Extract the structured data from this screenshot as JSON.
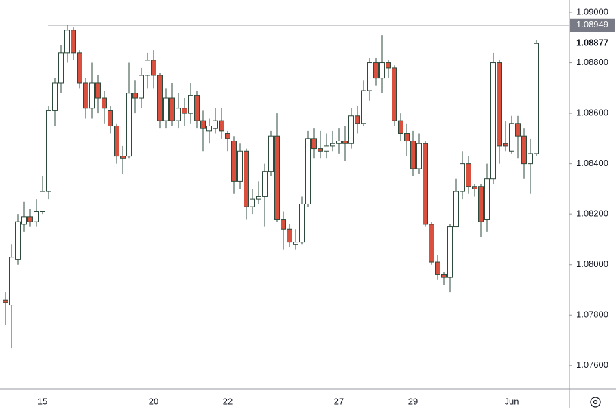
{
  "chart_data": {
    "type": "candlestick",
    "categories": [
      null,
      null,
      null,
      null,
      null,
      null,
      "15",
      null,
      null,
      null,
      null,
      null,
      null,
      null,
      null,
      null,
      null,
      null,
      null,
      null,
      null,
      null,
      null,
      null,
      "20",
      null,
      null,
      null,
      null,
      null,
      null,
      null,
      null,
      null,
      null,
      null,
      "22",
      null,
      null,
      null,
      null,
      null,
      null,
      null,
      null,
      null,
      null,
      null,
      null,
      null,
      null,
      null,
      null,
      null,
      "27",
      null,
      null,
      null,
      null,
      null,
      null,
      null,
      null,
      null,
      null,
      null,
      "29",
      null,
      null,
      null,
      null,
      null,
      null,
      null,
      null,
      null,
      null,
      null,
      null,
      null,
      null,
      null,
      "Jun",
      null,
      null,
      null,
      null
    ],
    "open": [
      1.0786,
      1.0784,
      1.0802,
      1.0816,
      1.0819,
      1.0817,
      1.0821,
      1.0829,
      1.0861,
      1.0872,
      1.0884,
      1.0893,
      1.0884,
      1.0872,
      1.0862,
      1.0872,
      1.0866,
      1.0861,
      1.0855,
      1.0843,
      1.0843,
      1.0868,
      1.0866,
      1.0875,
      1.0881,
      1.0875,
      1.0857,
      1.0866,
      1.0857,
      1.0862,
      1.086,
      1.0867,
      1.0857,
      1.0853,
      1.0854,
      1.0857,
      1.0852,
      1.0849,
      1.0833,
      1.0845,
      1.0823,
      1.0826,
      1.0827,
      1.0837,
      1.0851,
      1.0818,
      1.0814,
      1.0808,
      1.0809,
      1.0824,
      1.085,
      1.0846,
      1.0845,
      1.0847,
      1.0848,
      1.0849,
      1.0848,
      1.0859,
      1.0856,
      1.0869,
      1.088,
      1.0874,
      1.088,
      1.0878,
      1.0857,
      1.0852,
      1.0849,
      1.0838,
      1.0848,
      1.0816,
      1.0801,
      1.0796,
      1.0795,
      1.0815,
      1.0829,
      1.084,
      1.0831,
      1.0831,
      1.0818,
      1.0834,
      1.088,
      1.0848,
      1.0845,
      1.0856,
      1.0851,
      1.084,
      1.0844
    ],
    "high": [
      1.0789,
      1.0808,
      1.082,
      1.0825,
      1.0822,
      1.0826,
      1.0835,
      1.0863,
      1.0874,
      1.0887,
      1.0895,
      1.0894,
      1.0885,
      1.0874,
      1.088,
      1.0875,
      1.0869,
      1.0863,
      1.0856,
      1.0847,
      1.088,
      1.0873,
      1.0878,
      1.0884,
      1.0885,
      1.0876,
      1.087,
      1.0872,
      1.0868,
      1.0866,
      1.0872,
      1.0869,
      1.0861,
      1.0858,
      1.0862,
      1.0862,
      1.0853,
      1.0851,
      1.0848,
      1.0846,
      1.083,
      1.0833,
      1.084,
      1.0853,
      1.086,
      1.0821,
      1.0816,
      1.0814,
      1.0827,
      1.0853,
      1.0854,
      1.0853,
      1.0852,
      1.0853,
      1.0854,
      1.0855,
      1.0862,
      1.0863,
      1.0873,
      1.0882,
      1.0882,
      1.0891,
      1.0881,
      1.0879,
      1.086,
      1.0856,
      1.0853,
      1.0852,
      1.0849,
      1.0817,
      1.0804,
      1.0797,
      1.0816,
      1.0834,
      1.0845,
      1.0843,
      1.0832,
      1.0832,
      1.084,
      1.0884,
      1.0881,
      1.0857,
      1.0859,
      1.0859,
      1.0854,
      1.085,
      1.0889
    ],
    "low": [
      1.0776,
      1.0767,
      1.08,
      1.0813,
      1.0815,
      1.0815,
      1.082,
      1.0826,
      1.0855,
      1.0868,
      1.088,
      1.0881,
      1.087,
      1.0858,
      1.0858,
      1.086,
      1.0856,
      1.0852,
      1.084,
      1.0836,
      1.0842,
      1.086,
      1.0862,
      1.087,
      1.087,
      1.0854,
      1.0854,
      1.0855,
      1.0854,
      1.0855,
      1.0856,
      1.0854,
      1.0845,
      1.0848,
      1.0852,
      1.085,
      1.0845,
      1.0828,
      1.083,
      1.0818,
      1.082,
      1.0824,
      1.0815,
      1.0835,
      1.0817,
      1.0806,
      1.0807,
      1.0806,
      1.0808,
      1.0823,
      1.0842,
      1.0842,
      1.0842,
      1.0845,
      1.0844,
      1.0841,
      1.0846,
      1.0852,
      1.0855,
      1.0865,
      1.0871,
      1.0868,
      1.0874,
      1.0855,
      1.0849,
      1.0843,
      1.0835,
      1.0836,
      1.0815,
      1.08,
      1.0794,
      1.0792,
      1.0789,
      1.0815,
      1.0826,
      1.0828,
      1.0827,
      1.0811,
      1.0813,
      1.0832,
      1.084,
      1.0845,
      1.0844,
      1.0842,
      1.0834,
      1.0828,
      1.0843
    ],
    "close": [
      1.0785,
      1.0803,
      1.0817,
      1.0819,
      1.0817,
      1.0821,
      1.0829,
      1.0861,
      1.0872,
      1.0884,
      1.0893,
      1.0884,
      1.0872,
      1.0862,
      1.0872,
      1.0866,
      1.0862,
      1.0855,
      1.0843,
      1.0842,
      1.0868,
      1.0866,
      1.0875,
      1.0881,
      1.0875,
      1.0857,
      1.0866,
      1.0857,
      1.0862,
      1.086,
      1.0867,
      1.0857,
      1.0854,
      1.0855,
      1.0857,
      1.0853,
      1.085,
      1.0833,
      1.0845,
      1.0823,
      1.0826,
      1.0827,
      1.0837,
      1.0851,
      1.0818,
      1.0814,
      1.0809,
      1.0809,
      1.0824,
      1.085,
      1.0846,
      1.0845,
      1.0847,
      1.0848,
      1.0849,
      1.0848,
      1.0859,
      1.0856,
      1.0869,
      1.088,
      1.0874,
      1.088,
      1.0878,
      1.0857,
      1.0852,
      1.0849,
      1.0838,
      1.0848,
      1.0816,
      1.0801,
      1.0796,
      1.0795,
      1.0815,
      1.0829,
      1.084,
      1.0831,
      1.083,
      1.0817,
      1.0834,
      1.088,
      1.0847,
      1.0847,
      1.0856,
      1.0851,
      1.084,
      1.0844,
      1.08877
    ],
    "up_color": "#ffffff",
    "down_color": "#d9503f",
    "outline_color": "#2e4a3c",
    "ylim": [
      1.07507,
      1.09049
    ],
    "yticks": [
      {
        "value": 1.076,
        "label": "1.07600"
      },
      {
        "value": 1.078,
        "label": "1.07800"
      },
      {
        "value": 1.08,
        "label": "1.08000"
      },
      {
        "value": 1.082,
        "label": "1.08200"
      },
      {
        "value": 1.084,
        "label": "1.08400"
      },
      {
        "value": 1.086,
        "label": "1.08600"
      },
      {
        "value": 1.088,
        "label": "1.08800"
      },
      {
        "value": 1.09,
        "label": "1.09000"
      }
    ],
    "hline": 1.08949,
    "last_price": 1.08877
  }
}
